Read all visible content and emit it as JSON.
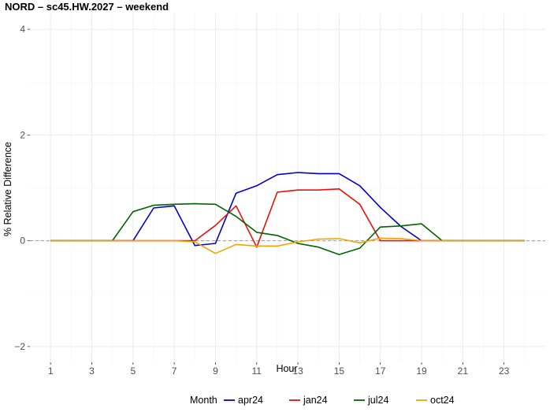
{
  "chart_data": {
    "type": "line",
    "title": "NORD –  sc45.HW.2027 – weekend",
    "xlabel": "Hour",
    "ylabel": "% Relative Difference",
    "xlim": [
      0.0,
      25.0
    ],
    "ylim": [
      -2.3,
      4.3
    ],
    "x_ticks": [
      1,
      3,
      5,
      7,
      9,
      11,
      13,
      15,
      17,
      19,
      21,
      23
    ],
    "y_ticks": [
      -2,
      0,
      2,
      4
    ],
    "reference_line": 0,
    "grid": true,
    "legend": {
      "title": "Month",
      "position": "bottom"
    },
    "x": [
      1,
      2,
      3,
      4,
      5,
      6,
      7,
      8,
      9,
      10,
      11,
      12,
      13,
      14,
      15,
      16,
      17,
      18,
      19,
      20,
      21,
      22,
      23,
      24
    ],
    "series": [
      {
        "name": "apr24",
        "color": "#0000CD",
        "values": [
          0,
          0,
          0,
          0,
          0,
          0.62,
          0.66,
          -0.09,
          -0.05,
          0.9,
          1.04,
          1.25,
          1.29,
          1.27,
          1.27,
          1.04,
          0.63,
          0.27,
          0,
          0,
          0,
          0,
          0,
          0
        ]
      },
      {
        "name": "jan24",
        "color": "#E8120C",
        "values": [
          0,
          0,
          0,
          0,
          0,
          0,
          0,
          0,
          0.29,
          0.66,
          -0.12,
          0.92,
          0.96,
          0.96,
          0.98,
          0.69,
          0,
          0,
          0,
          0,
          0,
          0,
          0,
          0
        ]
      },
      {
        "name": "jul24",
        "color": "#006400",
        "values": [
          0,
          0,
          0,
          0,
          0.55,
          0.67,
          0.69,
          0.7,
          0.69,
          0.46,
          0.16,
          0.1,
          -0.05,
          -0.12,
          -0.26,
          -0.14,
          0.26,
          0.28,
          0.32,
          0,
          0,
          0,
          0,
          0
        ]
      },
      {
        "name": "oct24",
        "color": "#F5A300",
        "values": [
          0,
          0,
          0,
          0,
          0,
          0,
          0,
          -0.02,
          -0.24,
          -0.07,
          -0.1,
          -0.1,
          -0.02,
          0.03,
          0.04,
          -0.04,
          0.05,
          0.04,
          0,
          0,
          0,
          0,
          0,
          0
        ]
      }
    ]
  }
}
